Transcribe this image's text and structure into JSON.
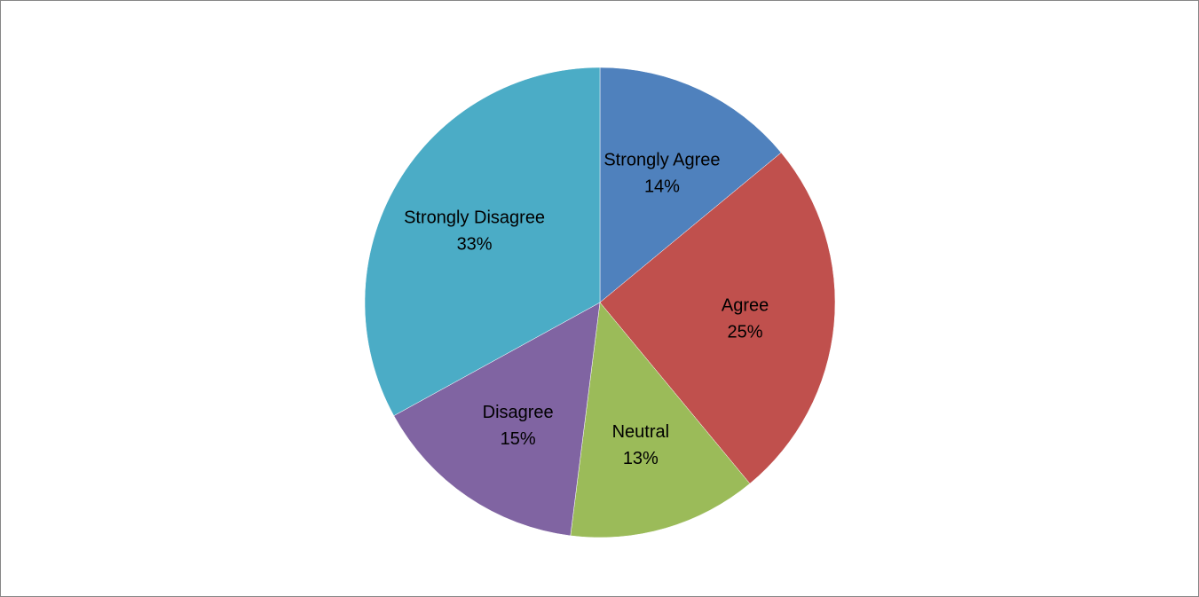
{
  "chart_data": {
    "type": "pie",
    "title": "",
    "start_angle_deg": 0,
    "direction": "clockwise",
    "slices": [
      {
        "label": "Strongly Agree",
        "value": 14,
        "display": "14%",
        "color": "#4F81BD"
      },
      {
        "label": "Agree",
        "value": 25,
        "display": "25%",
        "color": "#C0504D"
      },
      {
        "label": "Neutral",
        "value": 13,
        "display": "13%",
        "color": "#9BBB59"
      },
      {
        "label": "Disagree",
        "value": 15,
        "display": "15%",
        "color": "#8064A2"
      },
      {
        "label": "Strongly Disagree",
        "value": 33,
        "display": "33%",
        "color": "#4BACC6"
      }
    ],
    "legend": "none"
  }
}
